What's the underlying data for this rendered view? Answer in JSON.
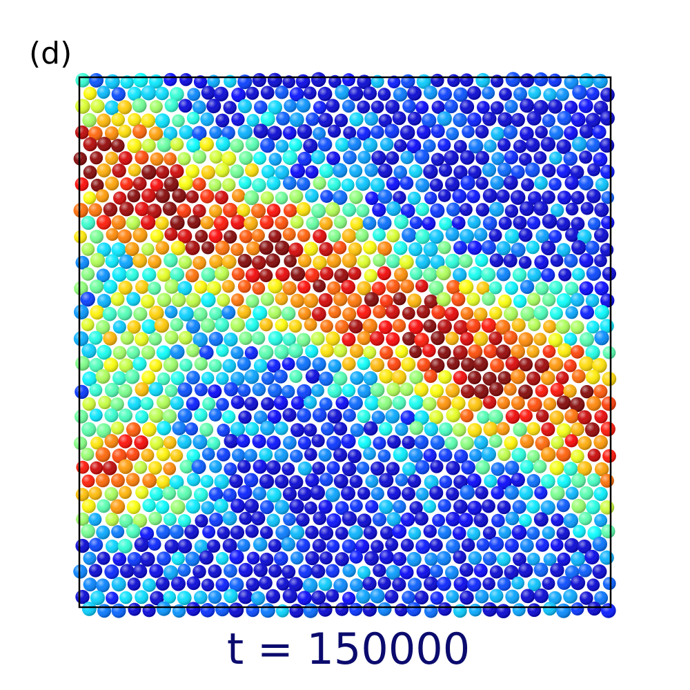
{
  "panel_label": "(d)",
  "caption": "t = 150000"
}
